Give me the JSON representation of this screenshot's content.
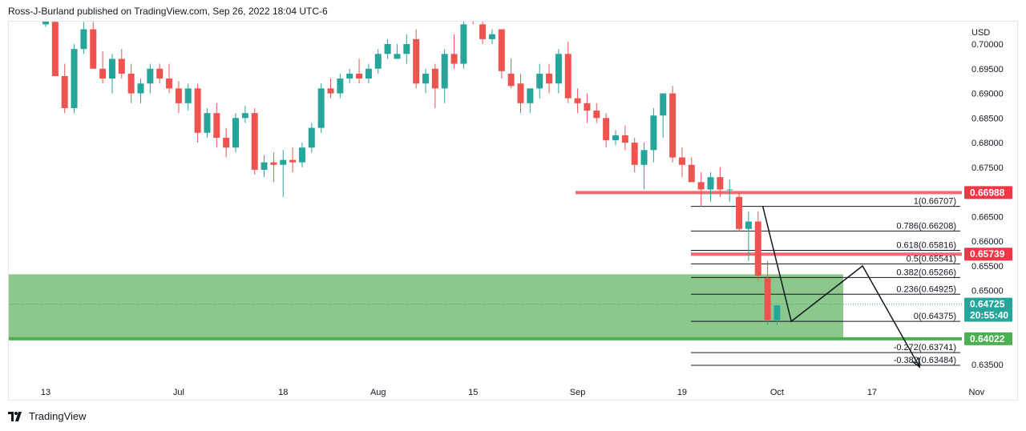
{
  "header": {
    "text": "Ross-J-Burland published on TradingView.com, Sep 26, 2022 18:04 UTC-6"
  },
  "footer": {
    "brand": "TradingView"
  },
  "colors": {
    "up": "#26a69a",
    "down": "#ef5350",
    "zone": "#86c586",
    "res_line": "#f06b73",
    "res_badge": "#f23645",
    "sup_badge": "#4caf50",
    "price_badge": "#26a69a",
    "text": "#131722",
    "axis_text": "#6a6d78"
  },
  "chart_data": {
    "type": "candlestick",
    "symbol_note": "",
    "y_axis": {
      "unit_label": "USD",
      "range": [
        0.63,
        0.7045
      ],
      "ticks": [
        "0.70000",
        "0.69500",
        "0.69000",
        "0.68500",
        "0.68000",
        "0.67500",
        "0.66500",
        "0.66000",
        "0.65500",
        "0.65000",
        "0.63500"
      ]
    },
    "x_axis": {
      "ticks": [
        {
          "label": "13",
          "index": 0
        },
        {
          "label": "Jul",
          "index": 14
        },
        {
          "label": "18",
          "index": 25
        },
        {
          "label": "Aug",
          "index": 35
        },
        {
          "label": "15",
          "index": 45
        },
        {
          "label": "Sep",
          "index": 56
        },
        {
          "label": "19",
          "index": 67
        },
        {
          "label": "Oct",
          "index": 77
        },
        {
          "label": "17",
          "index": 87
        },
        {
          "label": "Nov",
          "index": 98
        }
      ]
    },
    "candles": [
      [
        0.704,
        0.7055,
        0.7035,
        0.705
      ],
      [
        0.7045,
        0.705,
        0.6935,
        0.6935
      ],
      [
        0.6935,
        0.696,
        0.686,
        0.687
      ],
      [
        0.687,
        0.7,
        0.686,
        0.699
      ],
      [
        0.699,
        0.7045,
        0.698,
        0.703
      ],
      [
        0.703,
        0.7045,
        0.695,
        0.695
      ],
      [
        0.695,
        0.6985,
        0.692,
        0.693
      ],
      [
        0.693,
        0.698,
        0.69,
        0.697
      ],
      [
        0.697,
        0.699,
        0.693,
        0.694
      ],
      [
        0.694,
        0.696,
        0.688,
        0.69
      ],
      [
        0.69,
        0.693,
        0.688,
        0.692
      ],
      [
        0.692,
        0.696,
        0.69,
        0.695
      ],
      [
        0.695,
        0.696,
        0.692,
        0.693
      ],
      [
        0.693,
        0.696,
        0.69,
        0.691
      ],
      [
        0.691,
        0.6925,
        0.686,
        0.688
      ],
      [
        0.688,
        0.692,
        0.6865,
        0.691
      ],
      [
        0.691,
        0.692,
        0.68,
        0.682
      ],
      [
        0.682,
        0.687,
        0.681,
        0.686
      ],
      [
        0.686,
        0.688,
        0.679,
        0.681
      ],
      [
        0.681,
        0.683,
        0.677,
        0.679
      ],
      [
        0.679,
        0.686,
        0.678,
        0.685
      ],
      [
        0.685,
        0.6875,
        0.684,
        0.686
      ],
      [
        0.686,
        0.687,
        0.6735,
        0.6745
      ],
      [
        0.6745,
        0.6775,
        0.673,
        0.676
      ],
      [
        0.676,
        0.678,
        0.672,
        0.6755
      ],
      [
        0.6755,
        0.6785,
        0.669,
        0.6765
      ],
      [
        0.6765,
        0.679,
        0.674,
        0.676
      ],
      [
        0.676,
        0.68,
        0.675,
        0.679
      ],
      [
        0.679,
        0.684,
        0.678,
        0.683
      ],
      [
        0.683,
        0.692,
        0.682,
        0.691
      ],
      [
        0.691,
        0.693,
        0.689,
        0.69
      ],
      [
        0.69,
        0.694,
        0.689,
        0.693
      ],
      [
        0.693,
        0.695,
        0.692,
        0.694
      ],
      [
        0.694,
        0.697,
        0.692,
        0.693
      ],
      [
        0.693,
        0.696,
        0.692,
        0.695
      ],
      [
        0.695,
        0.699,
        0.694,
        0.698
      ],
      [
        0.698,
        0.701,
        0.697,
        0.7
      ],
      [
        0.697,
        0.7,
        0.697,
        0.698
      ],
      [
        0.698,
        0.702,
        0.696,
        0.7
      ],
      [
        0.701,
        0.703,
        0.691,
        0.692
      ],
      [
        0.692,
        0.695,
        0.69,
        0.694
      ],
      [
        0.695,
        0.696,
        0.687,
        0.691
      ],
      [
        0.691,
        0.699,
        0.688,
        0.698
      ],
      [
        0.698,
        0.702,
        0.695,
        0.696
      ],
      [
        0.696,
        0.705,
        0.695,
        0.704
      ],
      [
        0.706,
        0.707,
        0.704,
        0.7055
      ],
      [
        0.704,
        0.706,
        0.7,
        0.701
      ],
      [
        0.701,
        0.703,
        0.7,
        0.702
      ],
      [
        0.703,
        0.703,
        0.693,
        0.6945
      ],
      [
        0.694,
        0.697,
        0.691,
        0.6915
      ],
      [
        0.692,
        0.694,
        0.686,
        0.688
      ],
      [
        0.688,
        0.691,
        0.686,
        0.691
      ],
      [
        0.691,
        0.696,
        0.689,
        0.694
      ],
      [
        0.694,
        0.696,
        0.69,
        0.692
      ],
      [
        0.692,
        0.699,
        0.69,
        0.698
      ],
      [
        0.698,
        0.7005,
        0.688,
        0.689
      ],
      [
        0.689,
        0.691,
        0.686,
        0.688
      ],
      [
        0.688,
        0.69,
        0.684,
        0.6865
      ],
      [
        0.6865,
        0.688,
        0.684,
        0.685
      ],
      [
        0.685,
        0.686,
        0.679,
        0.6805
      ],
      [
        0.6805,
        0.6825,
        0.6795,
        0.6815
      ],
      [
        0.6815,
        0.6835,
        0.6785,
        0.68
      ],
      [
        0.68,
        0.681,
        0.674,
        0.6755
      ],
      [
        0.6755,
        0.68,
        0.6705,
        0.6785
      ],
      [
        0.6785,
        0.687,
        0.676,
        0.6855
      ],
      [
        0.6855,
        0.69,
        0.681,
        0.69
      ],
      [
        0.69,
        0.6915,
        0.676,
        0.677
      ],
      [
        0.677,
        0.679,
        0.673,
        0.6755
      ],
      [
        0.6755,
        0.677,
        0.672,
        0.672
      ],
      [
        0.672,
        0.674,
        0.667,
        0.6705
      ],
      [
        0.6705,
        0.674,
        0.668,
        0.673
      ],
      [
        0.673,
        0.675,
        0.669,
        0.6705
      ],
      [
        0.6705,
        0.6725,
        0.668,
        0.6705
      ],
      [
        0.669,
        0.67,
        0.662,
        0.6625
      ],
      [
        0.6625,
        0.666,
        0.656,
        0.664
      ],
      [
        0.664,
        0.666,
        0.652,
        0.653
      ],
      [
        0.6525,
        0.656,
        0.643,
        0.644
      ],
      [
        0.644,
        0.647,
        0.643,
        0.647
      ]
    ],
    "levels": {
      "resistance_upper": {
        "value": 0.66988,
        "label": "0.66988"
      },
      "resistance_mid": {
        "value": 0.65739,
        "label": "0.65739"
      },
      "support": {
        "value": 0.64022,
        "label": "0.64022"
      },
      "current_price": {
        "value": 0.64725,
        "label": "0.64725",
        "countdown": "20:55:40"
      },
      "support_zone": {
        "from": 0.6402,
        "to": 0.6533
      }
    },
    "fibonacci": [
      {
        "label": "1(0.66707)",
        "value": 0.66707
      },
      {
        "label": "0.786(0.66208)",
        "value": 0.66208
      },
      {
        "label": "0.618(0.65816)",
        "value": 0.65816
      },
      {
        "label": "0.5(0.65541)",
        "value": 0.65541
      },
      {
        "label": "0.382(0.65266)",
        "value": 0.65266
      },
      {
        "label": "0.236(0.64925)",
        "value": 0.64925
      },
      {
        "label": "0(0.64375)",
        "value": 0.64375
      },
      {
        "label": "-0.272(0.63741)",
        "value": 0.63741
      },
      {
        "label": "-0.382(0.63484)",
        "value": 0.63484
      }
    ],
    "projection_path": [
      {
        "index": 75.5,
        "price": 0.66707
      },
      {
        "index": 78.5,
        "price": 0.64375
      },
      {
        "index": 86,
        "price": 0.655
      },
      {
        "index": 92,
        "price": 0.6345
      }
    ],
    "impulse_arrow": {
      "from": {
        "index": 75.5,
        "price": 0.66707
      },
      "to": {
        "index": 78.5,
        "price": 0.64375
      }
    }
  }
}
